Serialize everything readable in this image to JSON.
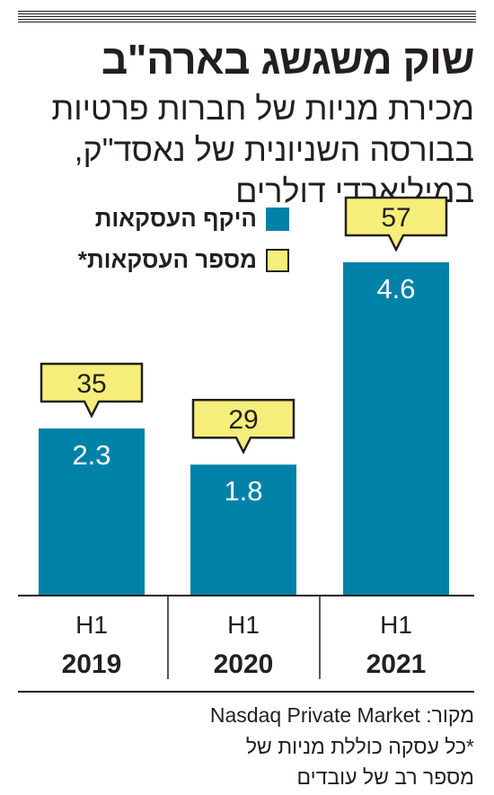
{
  "headline": "שוק משגשג בארה\"ב",
  "subtitle_lines": [
    "מכירת מניות של חברות פרטיות",
    "בבורסה השניונית של נאסד\"ק,",
    "במיליארדי דולרים"
  ],
  "legend": {
    "volume": "היקף העסקאות",
    "count": "מספר העסקאות*"
  },
  "source_text": "מקור: Nasdaq Private Market",
  "footnote_lines": [
    "*כל עסקה כוללת מניות של",
    "מספר רב של עובדים"
  ],
  "colors": {
    "bar": "#0082a8",
    "callout": "#f6ee7a",
    "ink": "#231f20"
  },
  "chart_data": {
    "type": "bar",
    "categories": [
      {
        "period": "H1",
        "year": "2019"
      },
      {
        "period": "H1",
        "year": "2020"
      },
      {
        "period": "H1",
        "year": "2021"
      }
    ],
    "series": [
      {
        "name": "היקף העסקאות",
        "values": [
          2.3,
          1.8,
          4.6
        ]
      },
      {
        "name": "מספר העסקאות*",
        "values": [
          35,
          29,
          57
        ]
      }
    ],
    "ylim": [
      0,
      5.0
    ],
    "grid": false
  }
}
